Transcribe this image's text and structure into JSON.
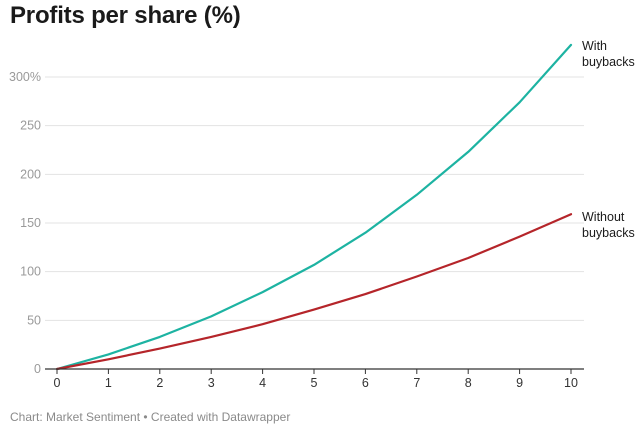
{
  "title": "Profits per share (%)",
  "footer": "Chart: Market Sentiment • Created with Datawrapper",
  "colors": {
    "with_buybacks": "#1db3a2",
    "without_buybacks": "#b5252a",
    "grid": "#e3e3e3",
    "axis": "#333333"
  },
  "chart_data": {
    "type": "line",
    "title": "Profits per share (%)",
    "xlabel": "",
    "ylabel": "",
    "x": [
      0,
      1,
      2,
      3,
      4,
      5,
      6,
      7,
      8,
      9,
      10
    ],
    "x_tick_labels": [
      "0",
      "1",
      "2",
      "3",
      "4",
      "5",
      "6",
      "7",
      "8",
      "9",
      "10"
    ],
    "y_tick_values": [
      0,
      50,
      100,
      150,
      200,
      250,
      300
    ],
    "y_tick_labels": [
      "0",
      "50",
      "100",
      "150",
      "200",
      "250",
      "300%"
    ],
    "xlim": [
      0,
      10
    ],
    "ylim": [
      0,
      300
    ],
    "grid": true,
    "series": [
      {
        "name": "With buybacks",
        "label_lines": [
          "With",
          "buybacks"
        ],
        "values": [
          0,
          15,
          33,
          54,
          79,
          107,
          140,
          179,
          223,
          274,
          333
        ]
      },
      {
        "name": "Without buybacks",
        "label_lines": [
          "Without",
          "buybacks"
        ],
        "values": [
          0,
          10,
          21,
          33,
          46,
          61,
          77,
          95,
          114,
          136,
          159
        ]
      }
    ]
  }
}
